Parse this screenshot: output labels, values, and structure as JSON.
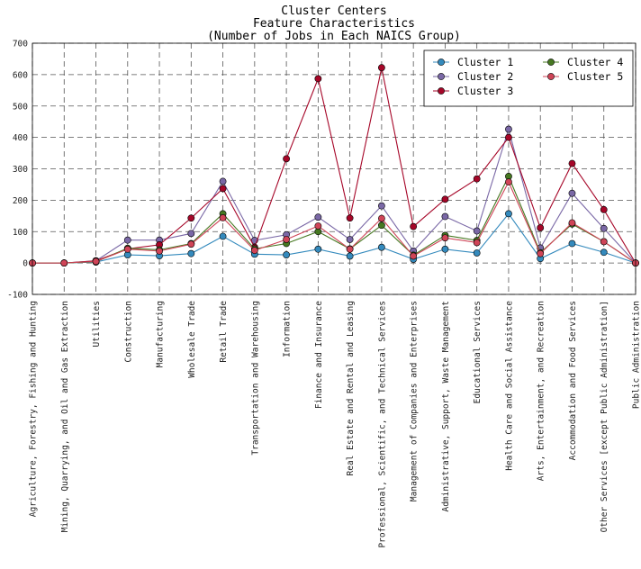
{
  "chart_data": {
    "type": "line",
    "title": [
      "Cluster Centers",
      "Feature Characteristics",
      "(Number of Jobs in Each NAICS Group)"
    ],
    "xlabel": "",
    "ylabel": "",
    "ylim": [
      -100,
      700
    ],
    "yticks": [
      -100,
      0,
      100,
      200,
      300,
      400,
      500,
      600,
      700
    ],
    "grid": true,
    "legend_position": "top-right",
    "categories": [
      "Agriculture, Forestry, Fishing and Hunting",
      "Mining, Quarrying, and Oil and Gas Extraction",
      "Utilities",
      "Construction",
      "Manufacturing",
      "Wholesale Trade",
      "Retail Trade",
      "Transportation and Warehousing",
      "Information",
      "Finance and Insurance",
      "Real Estate and Rental and Leasing",
      "Professional, Scientific, and Technical Services",
      "Management of Companies and Enterprises",
      "Administrative, Support, Waste Management",
      "Educational Services",
      "Health Care and Social Assistance",
      "Arts, Entertainment, and Recreation",
      "Accommodation and Food Services",
      "Other Services [except Public Administration]",
      "Public Administration"
    ],
    "series": [
      {
        "name": "Cluster 1",
        "color": "#348ABD",
        "values": [
          0,
          0,
          3,
          26,
          23,
          30,
          85,
          28,
          26,
          44,
          22,
          50,
          12,
          44,
          32,
          157,
          14,
          62,
          34,
          0
        ]
      },
      {
        "name": "Cluster 2",
        "color": "#7A68A6",
        "values": [
          0,
          0,
          7,
          73,
          73,
          94,
          260,
          72,
          90,
          146,
          75,
          182,
          38,
          148,
          102,
          426,
          48,
          222,
          110,
          0
        ]
      },
      {
        "name": "Cluster 3",
        "color": "#A60628",
        "values": [
          0,
          0,
          7,
          45,
          58,
          143,
          237,
          50,
          332,
          587,
          143,
          622,
          116,
          203,
          268,
          400,
          112,
          317,
          170,
          0
        ]
      },
      {
        "name": "Cluster 4",
        "color": "#467821",
        "values": [
          0,
          0,
          4,
          47,
          42,
          62,
          157,
          45,
          62,
          100,
          45,
          120,
          25,
          88,
          72,
          276,
          33,
          124,
          68,
          0
        ]
      },
      {
        "name": "Cluster 5",
        "color": "#CF4457",
        "values": [
          0,
          0,
          5,
          44,
          38,
          60,
          144,
          40,
          75,
          118,
          44,
          142,
          22,
          80,
          65,
          258,
          30,
          128,
          68,
          0
        ]
      }
    ]
  }
}
